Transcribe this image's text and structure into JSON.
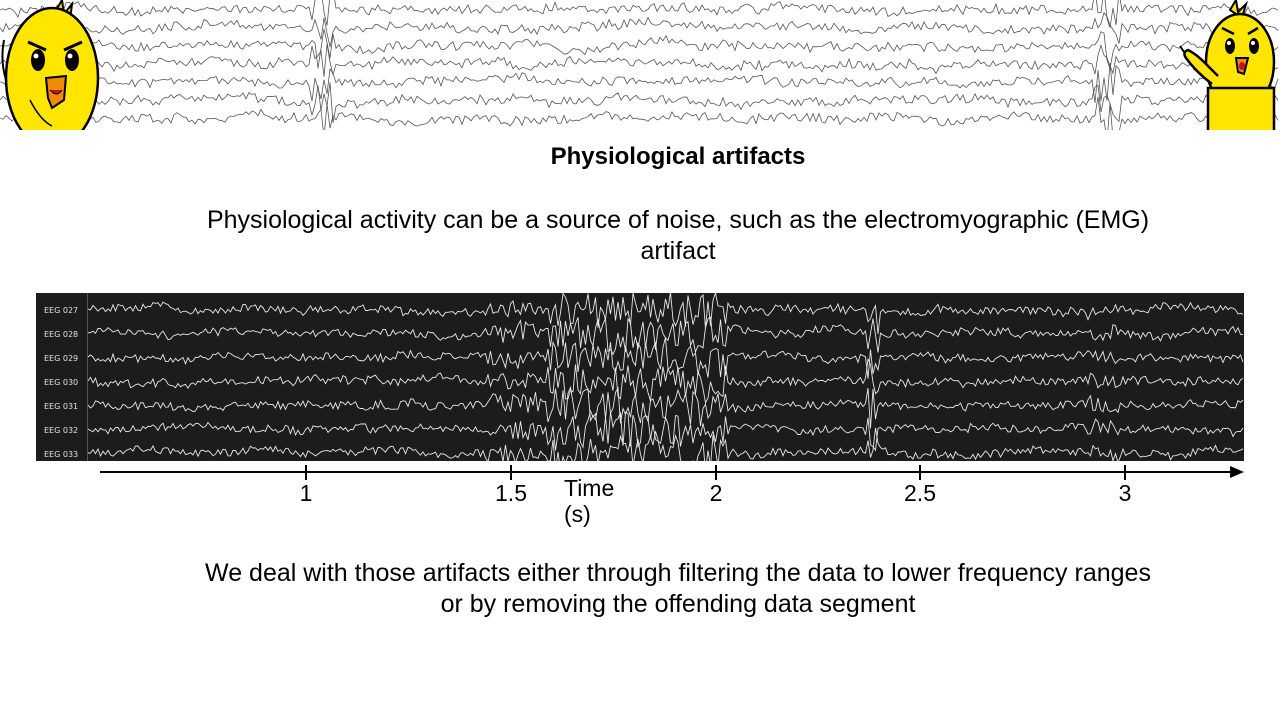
{
  "slide": {
    "title": "Physiological artifacts",
    "intro": "Physiological activity can be a source of noise, such as the electromyographic (EMG) artifact",
    "outro": "We deal with those artifacts either through filtering the data to lower frequency ranges or by removing the offending data segment"
  },
  "eeg": {
    "channels": [
      "EEG 027",
      "EEG 028",
      "EEG 029",
      "EEG 030",
      "EEG 031",
      "EEG 032",
      "EEG 033"
    ],
    "background_color": "#1c1c1c",
    "trace_color": "#e8e8e8"
  },
  "time_axis": {
    "label_line1": "Time",
    "label_line2": "(s)",
    "ticks": [
      "1",
      "1.5",
      "2",
      "2.5",
      "3"
    ]
  },
  "banner": {
    "trace_color": "#555555",
    "mascot_color": "#ffe600"
  }
}
